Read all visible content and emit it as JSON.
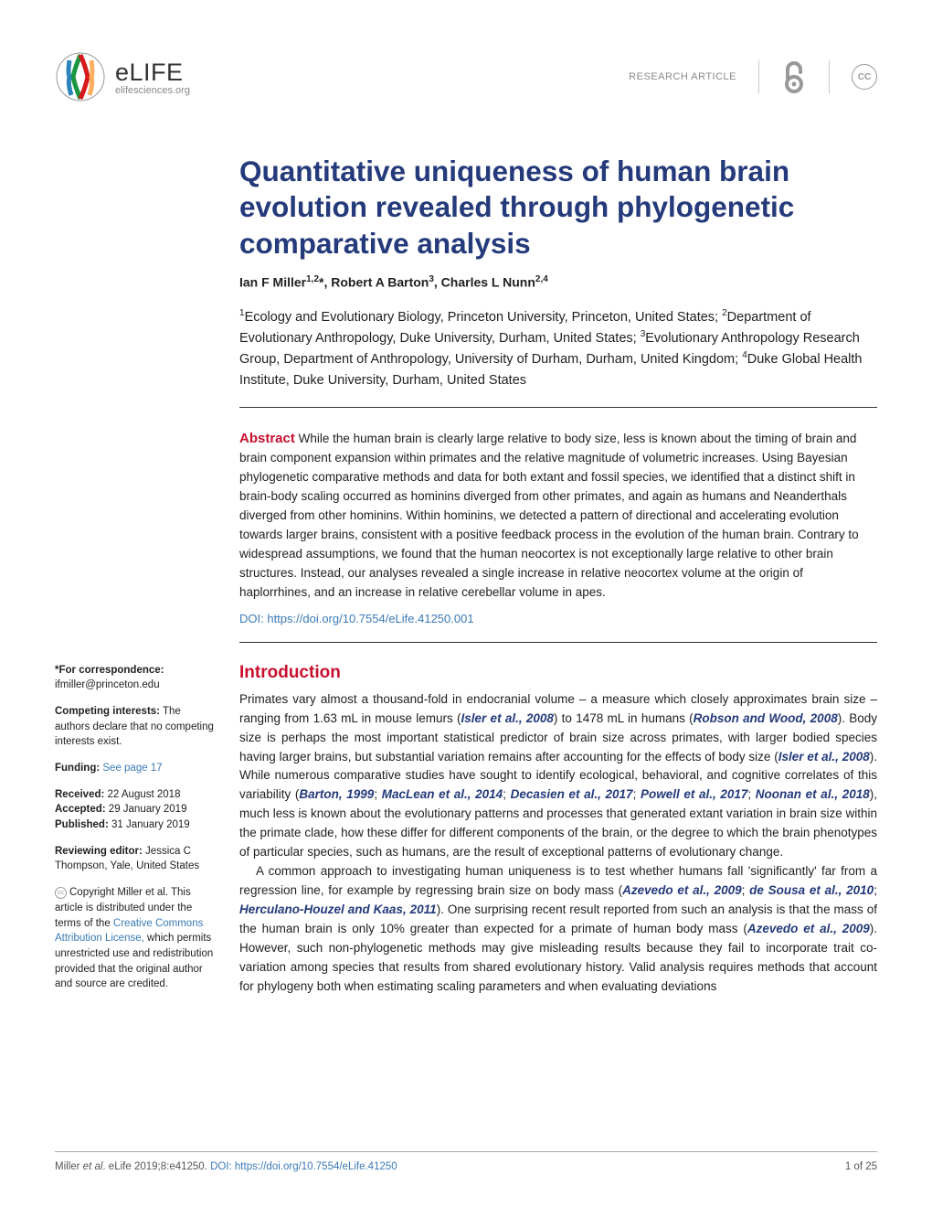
{
  "header": {
    "journal": "eLIFE",
    "journal_url": "elifesciences.org",
    "article_type": "RESEARCH ARTICLE",
    "cc_label": "CC"
  },
  "title": "Quantitative uniqueness of human brain evolution revealed through phylogenetic comparative analysis",
  "authors_html": "Ian F Miller<sup>1,2</sup>*, Robert A Barton<sup>3</sup>, Charles L Nunn<sup>2,4</sup>",
  "affiliations_html": "<sup>1</sup>Ecology and Evolutionary Biology, Princeton University, Princeton, United States; <sup>2</sup>Department of Evolutionary Anthropology, Duke University, Durham, United States; <sup>3</sup>Evolutionary Anthropology Research Group, Department of Anthropology, University of Durham, Durham, United Kingdom; <sup>4</sup>Duke Global Health Institute, Duke University, Durham, United States",
  "abstract": {
    "label": "Abstract",
    "text": " While the human brain is clearly large relative to body size, less is known about the timing of brain and brain component expansion within primates and the relative magnitude of volumetric increases. Using Bayesian phylogenetic comparative methods and data for both extant and fossil species, we identified that a distinct shift in brain-body scaling occurred as hominins diverged from other primates, and again as humans and Neanderthals diverged from other hominins. Within hominins, we detected a pattern of directional and accelerating evolution towards larger brains, consistent with a positive feedback process in the evolution of the human brain. Contrary to widespread assumptions, we found that the human neocortex is not exceptionally large relative to other brain structures. Instead, our analyses revealed a single increase in relative neocortex volume at the origin of haplorrhines, and an increase in relative cerebellar volume in apes."
  },
  "doi_link": "DOI: https://doi.org/10.7554/eLife.41250.001",
  "intro": {
    "heading": "Introduction",
    "p1_html": "Primates vary almost a thousand-fold in endocranial volume – a measure which closely approximates brain size – ranging from 1.63 mL in mouse lemurs (<span class='ref'>Isler et al., 2008</span>) to 1478 mL in humans (<span class='ref'>Robson and Wood, 2008</span>). Body size is perhaps the most important statistical predictor of brain size across primates, with larger bodied species having larger brains, but substantial variation remains after accounting for the effects of body size (<span class='ref'>Isler et al., 2008</span>). While numerous comparative studies have sought to identify ecological, behavioral, and cognitive correlates of this variability (<span class='ref'>Barton, 1999</span>; <span class='ref'>MacLean et al., 2014</span>; <span class='ref'>Decasien et al., 2017</span>; <span class='ref'>Powell et al., 2017</span>; <span class='ref'>Noonan et al., 2018</span>), much less is known about the evolutionary patterns and processes that generated extant variation in brain size within the primate clade, how these differ for different components of the brain, or the degree to which the brain phenotypes of particular species, such as humans, are the result of exceptional patterns of evolutionary change.",
    "p2_html": "A common approach to investigating human uniqueness is to test whether humans fall 'significantly' far from a regression line, for example by regressing brain size on body mass (<span class='ref'>Azevedo et al., 2009</span>; <span class='ref'>de Sousa et al., 2010</span>; <span class='ref'>Herculano-Houzel and Kaas, 2011</span>). One surprising recent result reported from such an analysis is that the mass of the human brain is only 10% greater than expected for a primate of human body mass (<span class='ref'>Azevedo et al., 2009</span>). However, such non-phylogenetic methods may give misleading results because they fail to incorporate trait co-variation among species that results from shared evolutionary history. Valid analysis requires methods that account for phylogeny both when estimating scaling parameters and when evaluating deviations"
  },
  "sidebar": {
    "correspondence_label": "*For correspondence:",
    "correspondence_value": "ifmiller@princeton.edu",
    "competing_label": "Competing interests:",
    "competing_value": " The authors declare that no competing interests exist.",
    "funding_label": "Funding:",
    "funding_link": " See page 17",
    "received_label": "Received: ",
    "received_value": "22 August 2018",
    "accepted_label": "Accepted: ",
    "accepted_value": "29 January 2019",
    "published_label": "Published: ",
    "published_value": "31 January 2019",
    "editor_label": "Reviewing editor: ",
    "editor_value": " Jessica C Thompson, Yale, United States",
    "copyright_html": "Copyright Miller et al. This article is distributed under the terms of the <span class='link'>Creative Commons Attribution License,</span> which permits unrestricted use and redistribution provided that the original author and source are credited."
  },
  "footer": {
    "citation_html": "Miller <i>et al</i>. eLife 2019;8:e41250. <span class='doi'>DOI: https://doi.org/10.7554/eLife.41250</span>",
    "page": "1 of 25"
  },
  "colors": {
    "title": "#243a7a",
    "accent_red": "#c8102e",
    "link_blue": "#3a7ab5",
    "text": "#212121",
    "muted": "#888"
  }
}
